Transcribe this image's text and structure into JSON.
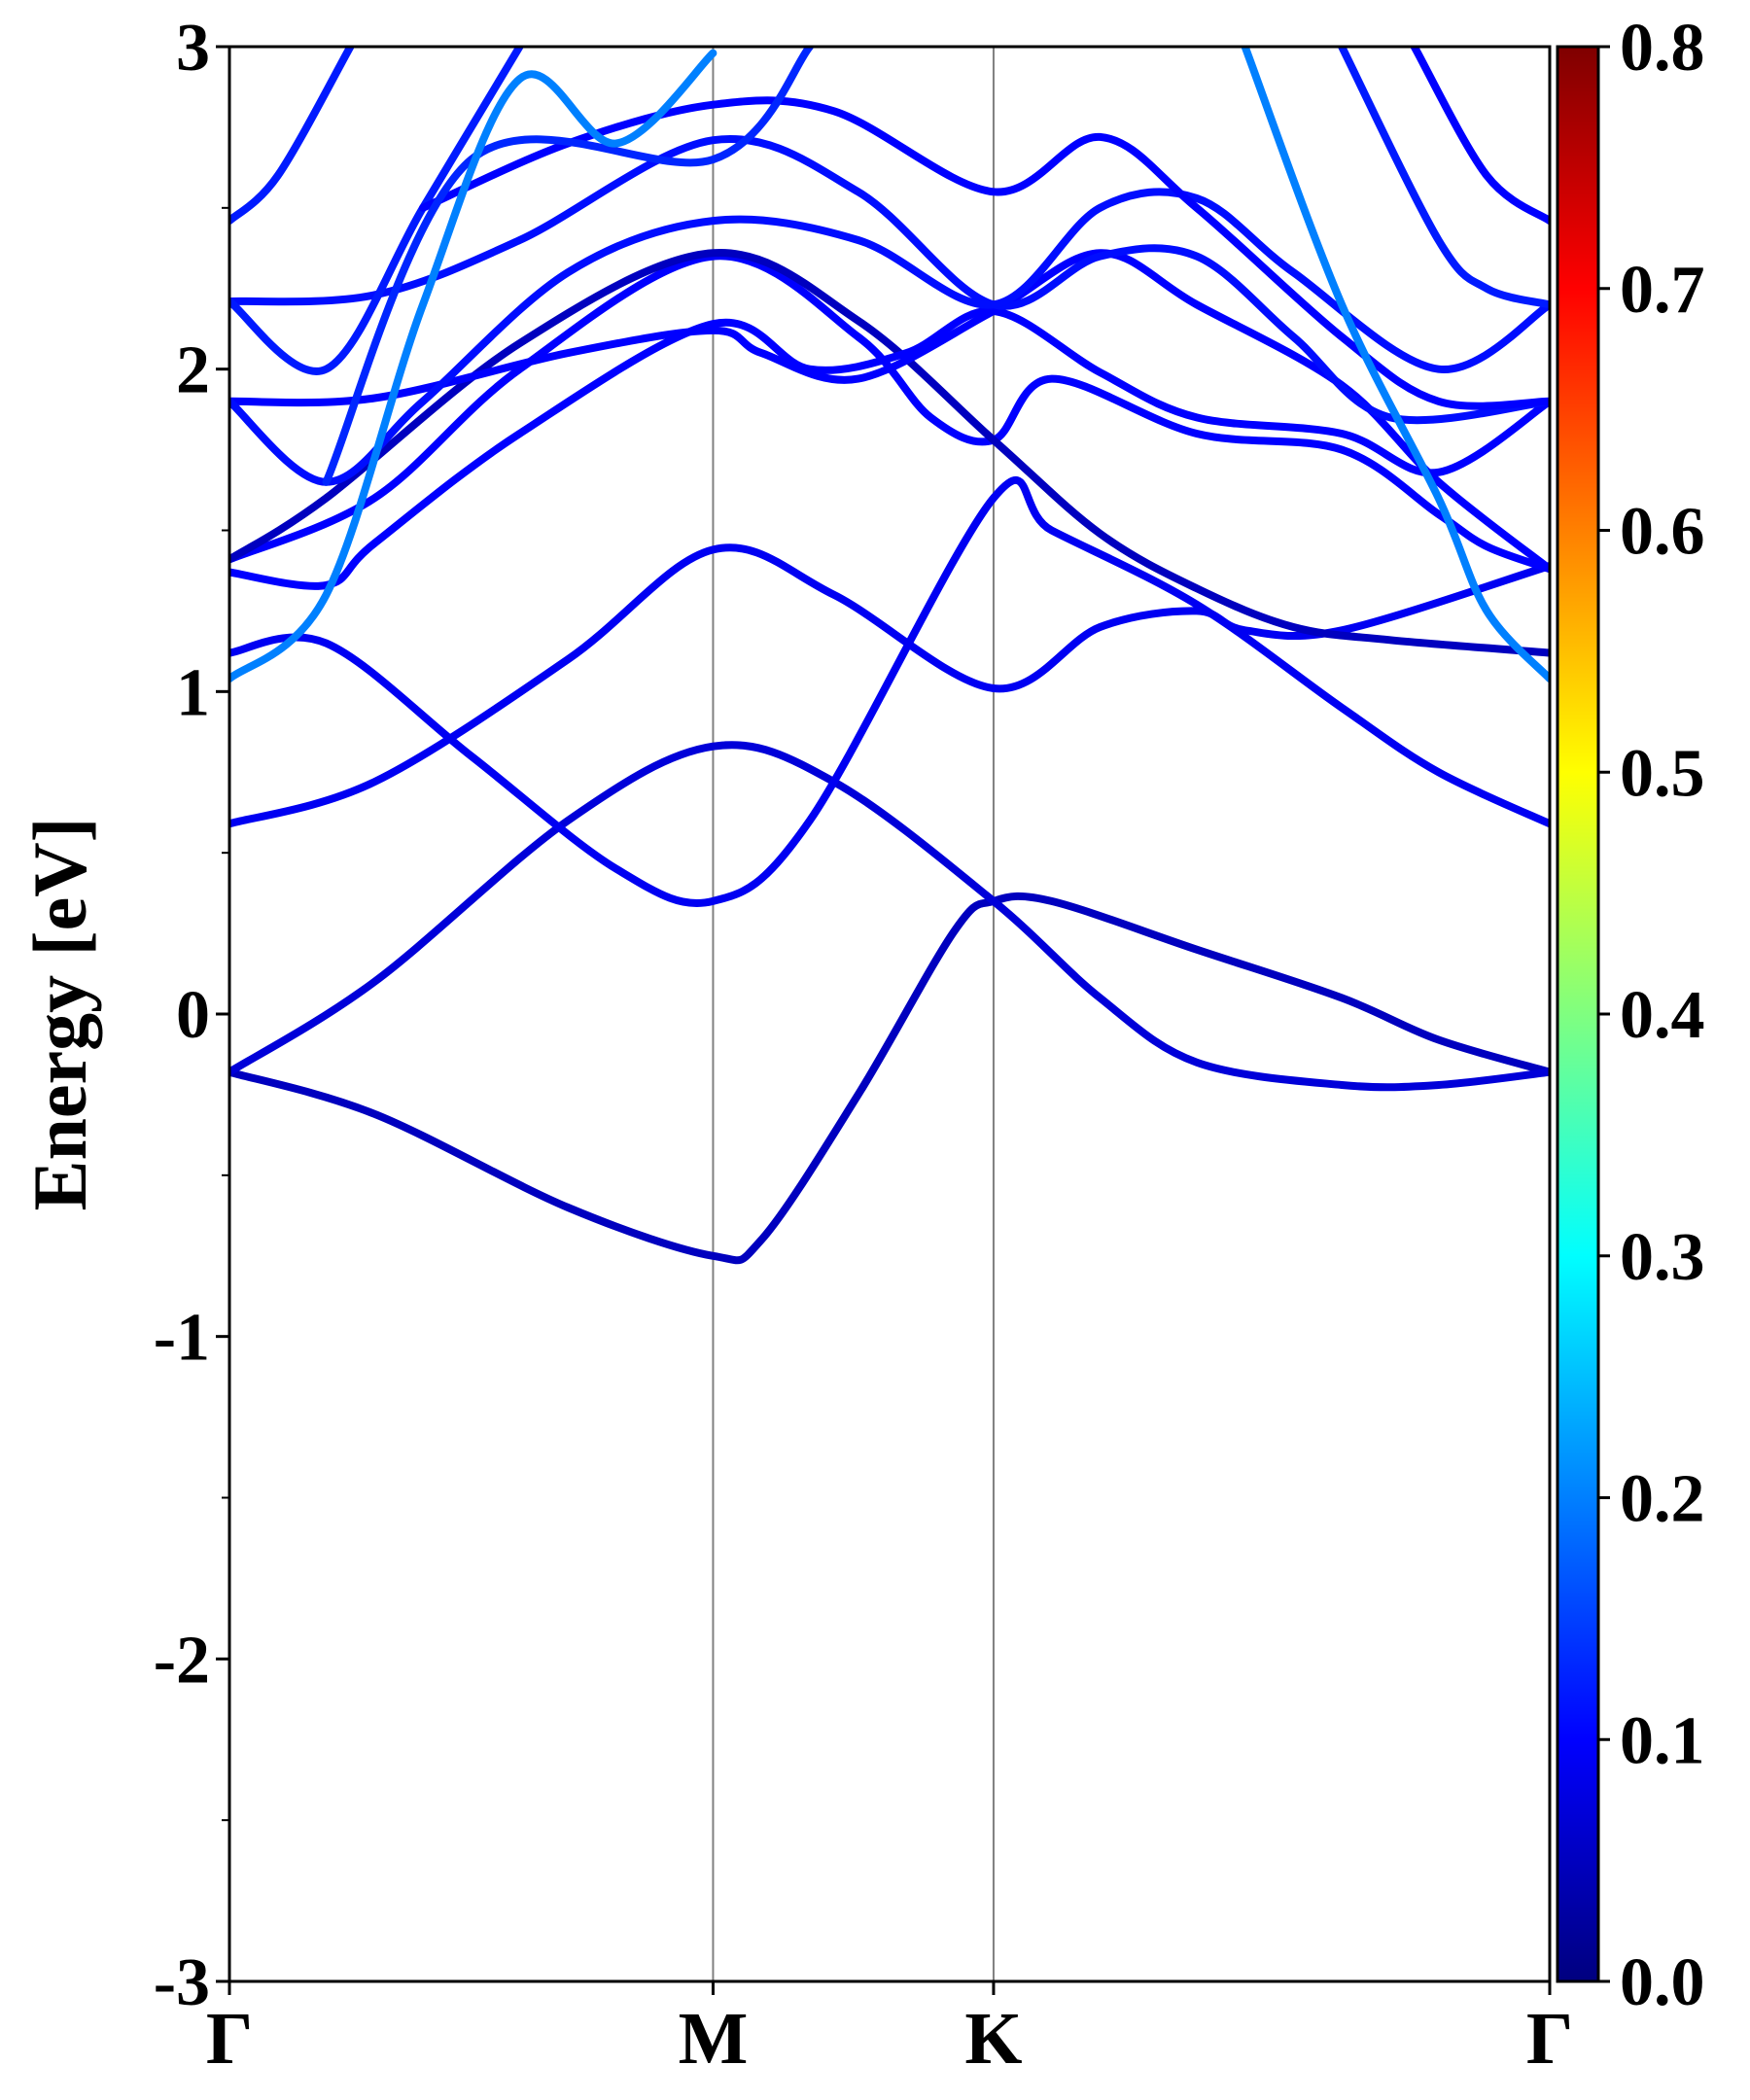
{
  "chart_data": {
    "type": "line",
    "title": "",
    "xlabel": "",
    "ylabel": "Energy [eV]",
    "ylim": [
      -3,
      3
    ],
    "yticks": [
      -3,
      -2,
      -1,
      0,
      1,
      2,
      3
    ],
    "ytick_labels": [
      "-3",
      "-2",
      "-1",
      "0",
      "1",
      "2",
      "3"
    ],
    "kpath": {
      "labels": [
        "Γ",
        "M",
        "K",
        "Γ"
      ],
      "positions": [
        0,
        1,
        1.58,
        2.73
      ]
    },
    "colorbar": {
      "colormap": "jet",
      "range": [
        0.0,
        0.8
      ],
      "ticks": [
        0.0,
        0.1,
        0.2,
        0.3,
        0.4,
        0.5,
        0.6,
        0.7,
        0.8
      ],
      "tick_labels": [
        "0.0",
        "0.1",
        "0.2",
        "0.3",
        "0.4",
        "0.5",
        "0.6",
        "0.7",
        "0.8"
      ]
    },
    "series": [
      {
        "color_value": 0.05,
        "points": [
          [
            0,
            -0.18
          ],
          [
            0.3,
            -0.31
          ],
          [
            0.7,
            -0.6
          ],
          [
            1.0,
            -0.75
          ],
          [
            1.1,
            -0.7
          ],
          [
            1.3,
            -0.25
          ],
          [
            1.5,
            0.26
          ],
          [
            1.58,
            0.35
          ],
          [
            1.7,
            0.35
          ],
          [
            2.0,
            0.2
          ],
          [
            2.3,
            0.05
          ],
          [
            2.5,
            -0.08
          ],
          [
            2.73,
            -0.18
          ]
        ]
      },
      {
        "color_value": 0.07,
        "points": [
          [
            0,
            -0.18
          ],
          [
            0.3,
            0.1
          ],
          [
            0.7,
            0.6
          ],
          [
            1.0,
            0.83
          ],
          [
            1.25,
            0.72
          ],
          [
            1.58,
            0.35
          ],
          [
            1.8,
            0.05
          ],
          [
            2.0,
            -0.15
          ],
          [
            2.3,
            -0.22
          ],
          [
            2.5,
            -0.22
          ],
          [
            2.73,
            -0.18
          ]
        ]
      },
      {
        "color_value": 0.09,
        "points": [
          [
            0,
            0.59
          ],
          [
            0.3,
            0.72
          ],
          [
            0.7,
            1.1
          ],
          [
            1.0,
            1.44
          ],
          [
            1.25,
            1.3
          ],
          [
            1.58,
            1.01
          ],
          [
            1.8,
            1.2
          ],
          [
            2.0,
            1.25
          ],
          [
            2.1,
            1.19
          ],
          [
            2.3,
            1.19
          ],
          [
            2.73,
            1.39
          ]
        ]
      },
      {
        "color_value": 0.09,
        "points": [
          [
            0,
            1.12
          ],
          [
            0.2,
            1.15
          ],
          [
            0.5,
            0.8
          ],
          [
            0.8,
            0.45
          ],
          [
            1.0,
            0.35
          ],
          [
            1.2,
            0.6
          ],
          [
            1.58,
            1.6
          ],
          [
            1.7,
            1.5
          ],
          [
            2.0,
            1.27
          ],
          [
            2.3,
            0.95
          ],
          [
            2.5,
            0.75
          ],
          [
            2.73,
            0.59
          ]
        ]
      },
      {
        "color_value": 0.1,
        "points": [
          [
            0,
            1.41
          ],
          [
            0.3,
            1.6
          ],
          [
            0.6,
            2.0
          ],
          [
            1.0,
            2.35
          ],
          [
            1.3,
            2.1
          ],
          [
            1.45,
            1.85
          ],
          [
            1.58,
            1.78
          ],
          [
            1.7,
            1.97
          ],
          [
            2.0,
            1.8
          ],
          [
            2.3,
            1.75
          ],
          [
            2.5,
            1.55
          ],
          [
            2.6,
            1.45
          ],
          [
            2.73,
            1.38
          ]
        ]
      },
      {
        "color_value": 0.05,
        "points": [
          [
            0,
            1.41
          ],
          [
            0.2,
            1.6
          ],
          [
            0.6,
            2.08
          ],
          [
            1.0,
            2.36
          ],
          [
            1.3,
            2.15
          ],
          [
            1.58,
            1.78
          ],
          [
            1.8,
            1.49
          ],
          [
            2.0,
            1.32
          ],
          [
            2.2,
            1.2
          ],
          [
            2.4,
            1.16
          ],
          [
            2.73,
            1.12
          ]
        ]
      },
      {
        "color_value": 0.1,
        "points": [
          [
            0,
            1.37
          ],
          [
            0.2,
            1.33
          ],
          [
            0.3,
            1.46
          ],
          [
            0.6,
            1.8
          ],
          [
            1.0,
            2.14
          ],
          [
            1.2,
            2.0
          ],
          [
            1.4,
            2.05
          ],
          [
            1.58,
            2.18
          ],
          [
            1.8,
            1.99
          ],
          [
            2.0,
            1.85
          ],
          [
            2.3,
            1.8
          ],
          [
            2.5,
            1.68
          ],
          [
            2.73,
            1.9
          ]
        ]
      },
      {
        "color_value": 0.1,
        "points": [
          [
            0,
            1.9
          ],
          [
            0.3,
            1.91
          ],
          [
            0.7,
            2.05
          ],
          [
            1.0,
            2.12
          ],
          [
            1.1,
            2.05
          ],
          [
            1.3,
            1.97
          ],
          [
            1.58,
            2.18
          ],
          [
            1.8,
            2.36
          ],
          [
            2.0,
            2.2
          ],
          [
            2.3,
            1.95
          ],
          [
            2.5,
            1.65
          ],
          [
            2.73,
            1.38
          ]
        ]
      },
      {
        "color_value": 0.11,
        "points": [
          [
            0,
            2.21
          ],
          [
            0.3,
            2.23
          ],
          [
            0.6,
            2.4
          ],
          [
            1.0,
            2.71
          ],
          [
            1.3,
            2.55
          ],
          [
            1.58,
            2.2
          ],
          [
            1.8,
            2.35
          ],
          [
            2.0,
            2.35
          ],
          [
            2.2,
            2.1
          ],
          [
            2.4,
            1.85
          ],
          [
            2.73,
            1.9
          ]
        ]
      },
      {
        "color_value": 0.11,
        "points": [
          [
            0,
            1.9
          ],
          [
            0.2,
            1.65
          ],
          [
            0.4,
            1.9
          ],
          [
            0.7,
            2.3
          ],
          [
            1.0,
            2.46
          ],
          [
            1.3,
            2.4
          ],
          [
            1.58,
            2.2
          ],
          [
            1.8,
            2.5
          ],
          [
            2.0,
            2.53
          ],
          [
            2.2,
            2.3
          ],
          [
            2.5,
            2.0
          ],
          [
            2.73,
            2.2
          ]
        ]
      },
      {
        "color_value": 0.12,
        "points": [
          [
            0,
            2.21
          ],
          [
            0.2,
            2.0
          ],
          [
            0.4,
            2.5
          ],
          [
            0.6,
            3.0
          ]
        ]
      },
      {
        "color_value": 0.12,
        "points": [
          [
            0,
            2.46
          ],
          [
            0.1,
            2.6
          ],
          [
            0.25,
            3.0
          ]
        ]
      },
      {
        "color_value": 0.1,
        "points": [
          [
            0.4,
            2.5
          ],
          [
            0.7,
            2.7
          ],
          [
            1.0,
            2.82
          ],
          [
            1.25,
            2.8
          ],
          [
            1.58,
            2.55
          ],
          [
            1.8,
            2.72
          ],
          [
            2.0,
            2.5
          ],
          [
            2.3,
            2.1
          ],
          [
            2.5,
            1.9
          ],
          [
            2.73,
            1.9
          ]
        ]
      },
      {
        "color_value": 0.13,
        "points": [
          [
            0.2,
            1.65
          ],
          [
            0.5,
            2.65
          ],
          [
            1.0,
            2.65
          ],
          [
            1.2,
            3.0
          ]
        ]
      },
      {
        "color_value": 0.2,
        "points": [
          [
            0,
            1.04
          ],
          [
            0.2,
            1.3
          ],
          [
            0.4,
            2.2
          ],
          [
            0.6,
            2.9
          ],
          [
            0.8,
            2.7
          ],
          [
            1.0,
            2.98
          ]
        ]
      },
      {
        "color_value": 0.2,
        "points": [
          [
            2.1,
            3.0
          ],
          [
            2.3,
            2.2
          ],
          [
            2.5,
            1.6
          ],
          [
            2.6,
            1.25
          ],
          [
            2.73,
            1.04
          ]
        ]
      },
      {
        "color_value": 0.12,
        "points": [
          [
            2.3,
            3.0
          ],
          [
            2.5,
            2.4
          ],
          [
            2.6,
            2.25
          ],
          [
            2.73,
            2.2
          ]
        ]
      },
      {
        "color_value": 0.1,
        "points": [
          [
            2.45,
            3.0
          ],
          [
            2.6,
            2.6
          ],
          [
            2.73,
            2.46
          ]
        ]
      }
    ]
  }
}
